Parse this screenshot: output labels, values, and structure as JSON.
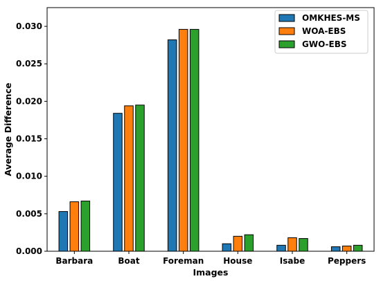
{
  "chart_data": {
    "type": "bar",
    "title": "",
    "xlabel": "Images",
    "ylabel": "Average Difference",
    "categories": [
      "Barbara",
      "Boat",
      "Foreman",
      "House",
      "Isabe",
      "Peppers"
    ],
    "series": [
      {
        "name": "OMKHES-MS",
        "color": "#1f77b4",
        "values": [
          0.0053,
          0.0184,
          0.0282,
          0.001,
          0.0008,
          0.0006
        ]
      },
      {
        "name": "WOA-EBS",
        "color": "#ff7f0e",
        "values": [
          0.0066,
          0.0194,
          0.0296,
          0.002,
          0.0018,
          0.0007
        ]
      },
      {
        "name": "GWO-EBS",
        "color": "#2ca02c",
        "values": [
          0.0067,
          0.0195,
          0.0296,
          0.0022,
          0.0017,
          0.0008
        ]
      }
    ],
    "ylim": [
      0,
      0.0325
    ],
    "yticks": [
      "0.000",
      "0.005",
      "0.010",
      "0.015",
      "0.020",
      "0.025",
      "0.030"
    ],
    "grid": false,
    "legend_position": "top-right"
  }
}
